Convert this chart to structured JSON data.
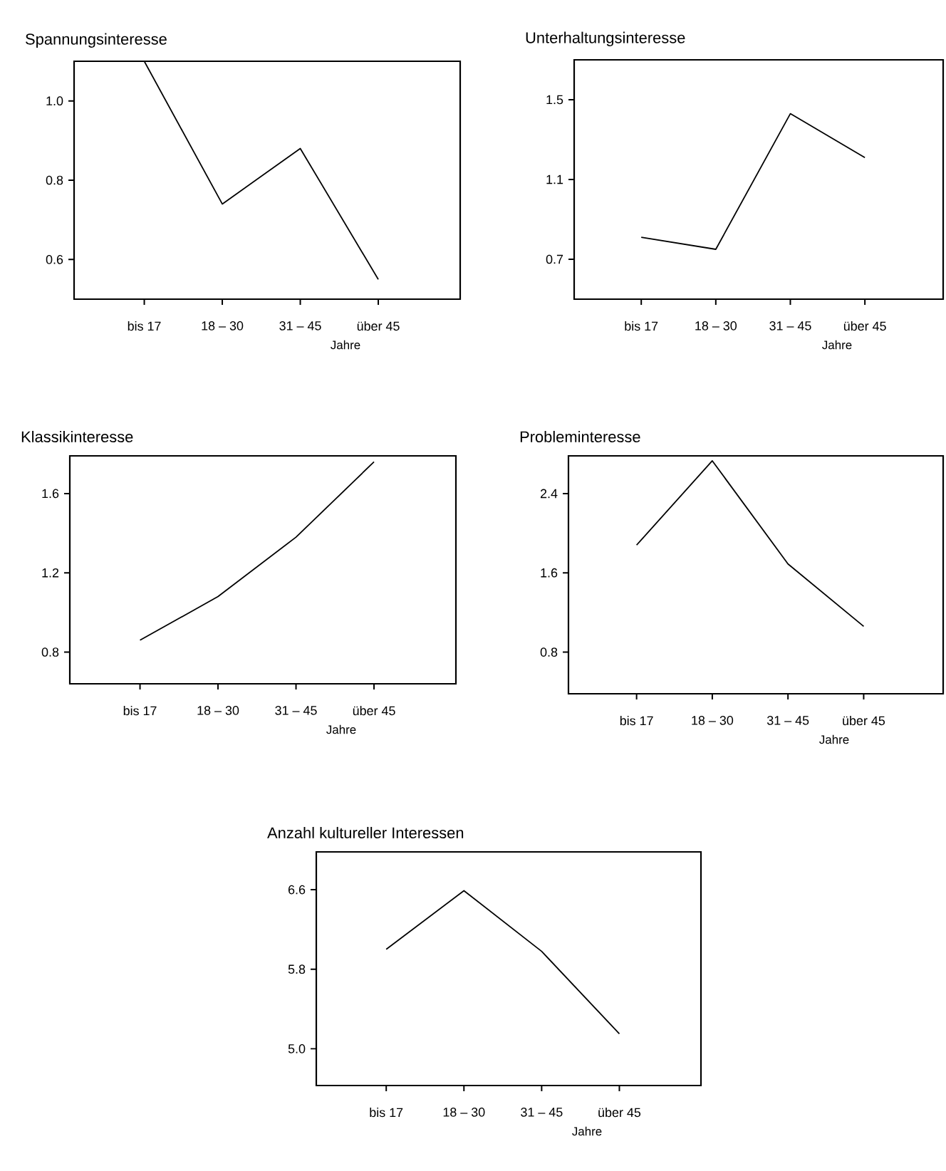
{
  "chart_data": [
    {
      "type": "line",
      "title": "Spannungsinteresse",
      "xlabel": "Jahre",
      "categories": [
        "bis 17",
        "18 – 30",
        "31 – 45",
        "über 45"
      ],
      "values": [
        1.1,
        0.74,
        0.88,
        0.55
      ],
      "color": "#000000",
      "ylim": [
        0.5,
        1.1
      ],
      "yticks": [
        0.6,
        0.8,
        {
          "value": 1.0,
          "label": "1.0"
        }
      ]
    },
    {
      "type": "line",
      "title": "Unterhaltungsinteresse",
      "xlabel": "Jahre",
      "categories": [
        "bis 17",
        "18 – 30",
        "31 – 45",
        "über 45"
      ],
      "values": [
        0.81,
        0.75,
        1.43,
        1.21
      ],
      "color": "#000000",
      "ylim": [
        0.5,
        1.7
      ],
      "yticks": [
        0.7,
        1.1,
        1.5
      ]
    },
    {
      "type": "line",
      "title": "Klassikinteresse",
      "xlabel": "Jahre",
      "categories": [
        "bis 17",
        "18 – 30",
        "31 – 45",
        "über 45"
      ],
      "values": [
        0.86,
        1.08,
        1.38,
        1.76
      ],
      "color": "#000000",
      "ylim": [
        0.64,
        1.79
      ],
      "yticks": [
        0.8,
        1.2,
        1.6
      ]
    },
    {
      "type": "line",
      "title": "Probleminteresse",
      "xlabel": "Jahre",
      "categories": [
        "bis 17",
        "18 – 30",
        "31 – 45",
        "über 45"
      ],
      "values": [
        1.88,
        2.73,
        1.69,
        1.06
      ],
      "color": "#000000",
      "ylim": [
        0.38,
        2.78
      ],
      "yticks": [
        0.8,
        1.6,
        2.4
      ]
    },
    {
      "type": "line",
      "title": "Anzahl kultureller Interessen",
      "xlabel": "Jahre",
      "categories": [
        "bis 17",
        "18 – 30",
        "31 – 45",
        "über 45"
      ],
      "values": [
        6.0,
        6.59,
        5.98,
        5.15
      ],
      "color": "#000000",
      "ylim": [
        4.63,
        6.98
      ],
      "yticks": [
        {
          "value": 5.0,
          "label": "5.0"
        },
        5.8,
        6.6
      ]
    }
  ]
}
